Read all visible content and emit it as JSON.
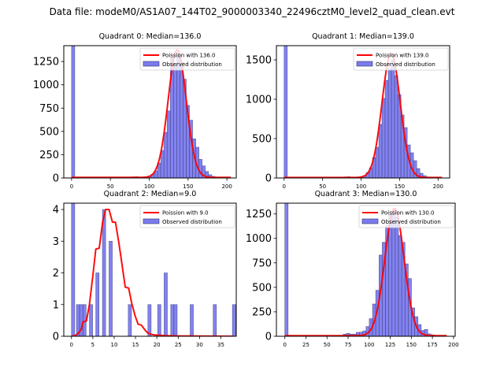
{
  "figure": {
    "suptitle": "Data file: modeM0/AS1A07_144T02_9000003340_22496cztM0_level2_quad_clean.evt"
  },
  "colors": {
    "bar_fill": "#7b7bf0",
    "bar_edge": "#333366",
    "poisson_line": "#ff0000"
  },
  "chart_data": [
    {
      "type": "bar",
      "title": "Quadrant 0: Median=136.0",
      "xlim": [
        -10,
        212
      ],
      "ylim": [
        0,
        1420
      ],
      "xticks": [
        0,
        50,
        100,
        150,
        200
      ],
      "yticks": [
        0,
        250,
        500,
        750,
        1000,
        1250
      ],
      "bin_width": 4.1,
      "bins": [
        {
          "x": 0,
          "y": 1420
        },
        {
          "x": 65.6,
          "y": 3
        },
        {
          "x": 69.7,
          "y": 5
        },
        {
          "x": 73.8,
          "y": 8
        },
        {
          "x": 77.9,
          "y": 12
        },
        {
          "x": 82.0,
          "y": 14
        },
        {
          "x": 86.1,
          "y": 10
        },
        {
          "x": 90.2,
          "y": 8
        },
        {
          "x": 94.3,
          "y": 10
        },
        {
          "x": 98.4,
          "y": 20
        },
        {
          "x": 102.5,
          "y": 40
        },
        {
          "x": 106.6,
          "y": 75
        },
        {
          "x": 110.7,
          "y": 160
        },
        {
          "x": 114.8,
          "y": 295
        },
        {
          "x": 118.9,
          "y": 490
        },
        {
          "x": 123.0,
          "y": 720
        },
        {
          "x": 127.1,
          "y": 1290
        },
        {
          "x": 131.2,
          "y": 1210
        },
        {
          "x": 135.3,
          "y": 1340
        },
        {
          "x": 139.4,
          "y": 1240
        },
        {
          "x": 143.5,
          "y": 1060
        },
        {
          "x": 147.6,
          "y": 780
        },
        {
          "x": 151.7,
          "y": 620
        },
        {
          "x": 155.8,
          "y": 420
        },
        {
          "x": 159.9,
          "y": 330
        },
        {
          "x": 164.0,
          "y": 200
        },
        {
          "x": 168.1,
          "y": 130
        },
        {
          "x": 172.2,
          "y": 70
        },
        {
          "x": 176.3,
          "y": 35
        },
        {
          "x": 180.4,
          "y": 18
        },
        {
          "x": 184.5,
          "y": 8
        },
        {
          "x": 188.6,
          "y": 4
        },
        {
          "x": 192.7,
          "y": 2
        },
        {
          "x": 196.8,
          "y": 1
        },
        {
          "x": 200.9,
          "y": 1
        }
      ],
      "poisson_label": "Poission with 136.0",
      "poisson_mean": 136.0,
      "poisson_peak": 1370,
      "poisson_xrange": [
        0,
        205
      ],
      "legend": [
        "Poission with 136.0",
        "Observed distribution"
      ],
      "legend_loc": "upper right"
    },
    {
      "type": "bar",
      "title": "Quadrant 1: Median=139.0",
      "xlim": [
        -10,
        215
      ],
      "ylim": [
        0,
        1680
      ],
      "xticks": [
        0,
        50,
        100,
        150,
        200
      ],
      "yticks": [
        0,
        500,
        1000,
        1500
      ],
      "bin_width": 4.1,
      "bins": [
        {
          "x": 0,
          "y": 1680
        },
        {
          "x": 65.6,
          "y": 3
        },
        {
          "x": 69.7,
          "y": 5
        },
        {
          "x": 73.8,
          "y": 8
        },
        {
          "x": 77.9,
          "y": 14
        },
        {
          "x": 82.0,
          "y": 16
        },
        {
          "x": 86.1,
          "y": 10
        },
        {
          "x": 90.2,
          "y": 6
        },
        {
          "x": 94.3,
          "y": 8
        },
        {
          "x": 98.4,
          "y": 14
        },
        {
          "x": 102.5,
          "y": 30
        },
        {
          "x": 106.6,
          "y": 70
        },
        {
          "x": 110.7,
          "y": 130
        },
        {
          "x": 114.8,
          "y": 260
        },
        {
          "x": 118.9,
          "y": 390
        },
        {
          "x": 123.0,
          "y": 680
        },
        {
          "x": 127.1,
          "y": 1010
        },
        {
          "x": 131.2,
          "y": 1240
        },
        {
          "x": 135.3,
          "y": 1390
        },
        {
          "x": 139.4,
          "y": 1500
        },
        {
          "x": 143.5,
          "y": 1300
        },
        {
          "x": 147.6,
          "y": 1060
        },
        {
          "x": 151.7,
          "y": 800
        },
        {
          "x": 155.8,
          "y": 640
        },
        {
          "x": 159.9,
          "y": 420
        },
        {
          "x": 164.0,
          "y": 320
        },
        {
          "x": 168.1,
          "y": 220
        },
        {
          "x": 172.2,
          "y": 120
        },
        {
          "x": 176.3,
          "y": 60
        },
        {
          "x": 180.4,
          "y": 30
        },
        {
          "x": 184.5,
          "y": 14
        },
        {
          "x": 188.6,
          "y": 8
        },
        {
          "x": 192.7,
          "y": 4
        },
        {
          "x": 196.8,
          "y": 2
        },
        {
          "x": 200.9,
          "y": 1
        },
        {
          "x": 205.0,
          "y": 1
        }
      ],
      "poisson_label": "Poission with 139.0",
      "poisson_mean": 139.0,
      "poisson_peak": 1575,
      "poisson_xrange": [
        0,
        205
      ],
      "legend": [
        "Poission with 139.0",
        "Observed distribution"
      ],
      "legend_loc": "upper right"
    },
    {
      "type": "bar",
      "title": "Quadrant 2: Median=9.0",
      "xlim": [
        -1.8,
        38.6
      ],
      "ylim": [
        0,
        4.2
      ],
      "xticks": [
        0,
        5,
        10,
        15,
        20,
        25,
        30,
        35
      ],
      "yticks": [
        0,
        1,
        2,
        3,
        4
      ],
      "bin_width": 0.76,
      "bins": [
        {
          "x": 0.0,
          "y": 4.2
        },
        {
          "x": 1.15,
          "y": 1
        },
        {
          "x": 1.91,
          "y": 1
        },
        {
          "x": 2.67,
          "y": 1
        },
        {
          "x": 4.2,
          "y": 1
        },
        {
          "x": 5.7,
          "y": 2
        },
        {
          "x": 7.25,
          "y": 4
        },
        {
          "x": 8.8,
          "y": 3
        },
        {
          "x": 13.3,
          "y": 1
        },
        {
          "x": 17.9,
          "y": 1
        },
        {
          "x": 20.2,
          "y": 1
        },
        {
          "x": 21.7,
          "y": 2
        },
        {
          "x": 23.25,
          "y": 1
        },
        {
          "x": 24.0,
          "y": 1
        },
        {
          "x": 27.8,
          "y": 1
        },
        {
          "x": 33.2,
          "y": 1
        },
        {
          "x": 37.7,
          "y": 1
        }
      ],
      "poisson_label": "Poission with 9.0",
      "poisson_mean": 9.0,
      "poisson_curve": [
        [
          0.0,
          0.0
        ],
        [
          0.8,
          0.02
        ],
        [
          1.5,
          0.08
        ],
        [
          2.3,
          0.22
        ],
        [
          2.7,
          0.45
        ],
        [
          3.5,
          0.48
        ],
        [
          4.2,
          1.0
        ],
        [
          5.0,
          1.9
        ],
        [
          5.7,
          2.75
        ],
        [
          6.5,
          2.78
        ],
        [
          7.3,
          3.6
        ],
        [
          8.0,
          4.0
        ],
        [
          8.8,
          4.0
        ],
        [
          9.6,
          3.6
        ],
        [
          10.3,
          3.6
        ],
        [
          11.1,
          2.95
        ],
        [
          11.8,
          2.3
        ],
        [
          12.6,
          1.55
        ],
        [
          13.4,
          1.52
        ],
        [
          14.1,
          1.05
        ],
        [
          14.9,
          0.65
        ],
        [
          15.6,
          0.38
        ],
        [
          16.4,
          0.35
        ],
        [
          17.2,
          0.2
        ],
        [
          17.9,
          0.1
        ],
        [
          18.7,
          0.06
        ],
        [
          19.5,
          0.04
        ],
        [
          22.0,
          0.02
        ],
        [
          25.0,
          0.01
        ],
        [
          38.0,
          0.0
        ]
      ],
      "legend": [
        "Poission with 9.0",
        "Observed distribution"
      ],
      "legend_loc": "upper right"
    },
    {
      "type": "bar",
      "title": "Quadrant 3: Median=130.0",
      "xlim": [
        -10,
        202
      ],
      "ylim": [
        0,
        1360
      ],
      "xticks": [
        0,
        25,
        50,
        75,
        100,
        125,
        150,
        175,
        200
      ],
      "yticks": [
        0,
        250,
        500,
        750,
        1000,
        1250
      ],
      "bin_width": 3.85,
      "bins": [
        {
          "x": 0,
          "y": 1360
        },
        {
          "x": 50.0,
          "y": 3
        },
        {
          "x": 57.8,
          "y": 4
        },
        {
          "x": 65.5,
          "y": 6
        },
        {
          "x": 69.3,
          "y": 22
        },
        {
          "x": 73.2,
          "y": 30
        },
        {
          "x": 77.0,
          "y": 22
        },
        {
          "x": 80.9,
          "y": 22
        },
        {
          "x": 84.7,
          "y": 40
        },
        {
          "x": 88.6,
          "y": 42
        },
        {
          "x": 92.4,
          "y": 55
        },
        {
          "x": 96.3,
          "y": 100
        },
        {
          "x": 100.1,
          "y": 180
        },
        {
          "x": 104.0,
          "y": 330
        },
        {
          "x": 107.8,
          "y": 470
        },
        {
          "x": 111.7,
          "y": 830
        },
        {
          "x": 115.5,
          "y": 960
        },
        {
          "x": 119.4,
          "y": 1130
        },
        {
          "x": 123.2,
          "y": 1240
        },
        {
          "x": 127.1,
          "y": 1290
        },
        {
          "x": 130.9,
          "y": 1220
        },
        {
          "x": 134.8,
          "y": 1030
        },
        {
          "x": 138.6,
          "y": 960
        },
        {
          "x": 142.5,
          "y": 740
        },
        {
          "x": 146.3,
          "y": 590
        },
        {
          "x": 150.2,
          "y": 290
        },
        {
          "x": 154.0,
          "y": 200
        },
        {
          "x": 157.9,
          "y": 120
        },
        {
          "x": 161.7,
          "y": 60
        },
        {
          "x": 165.6,
          "y": 70
        },
        {
          "x": 169.4,
          "y": 25
        },
        {
          "x": 173.3,
          "y": 15
        },
        {
          "x": 177.1,
          "y": 6
        },
        {
          "x": 181.0,
          "y": 3
        },
        {
          "x": 184.8,
          "y": 2
        }
      ],
      "poisson_label": "Poission with 130.0",
      "poisson_mean": 130.0,
      "poisson_peak": 1300,
      "poisson_xrange": [
        0,
        192
      ],
      "legend": [
        "Poission with 130.0",
        "Observed distribution"
      ],
      "legend_loc": "upper right"
    }
  ]
}
